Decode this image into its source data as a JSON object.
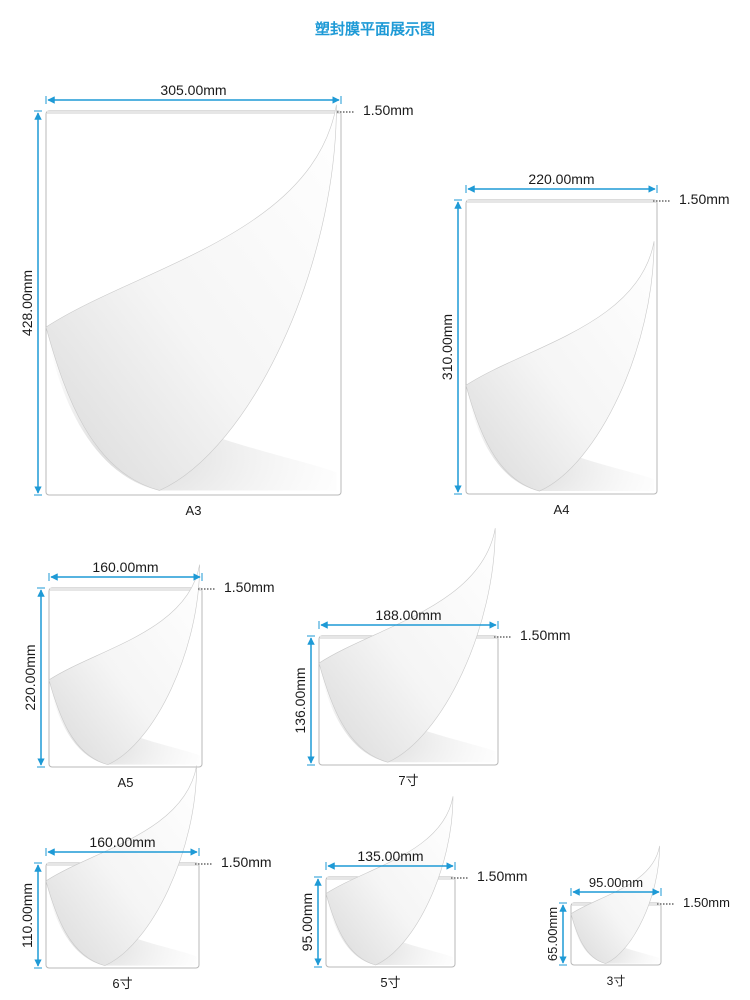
{
  "title": "塑封膜平面展示图",
  "colors": {
    "title": "#1e9ad6",
    "dimension": "#1e9ad6",
    "sheet_border": "#b8b8b8",
    "sheet_fill": "#ffffff",
    "text": "#1a1a1a"
  },
  "sheets": [
    {
      "name": "A3",
      "width": "305.00mm",
      "height": "428.00mm",
      "seal": "1.50mm"
    },
    {
      "name": "A4",
      "width": "220.00mm",
      "height": "310.00mm",
      "seal": "1.50mm"
    },
    {
      "name": "A5",
      "width": "160.00mm",
      "height": "220.00mm",
      "seal": "1.50mm"
    },
    {
      "name": "7寸",
      "width": "188.00mm",
      "height": "136.00mm",
      "seal": "1.50mm"
    },
    {
      "name": "6寸",
      "width": "160.00mm",
      "height": "110.00mm",
      "seal": "1.50mm"
    },
    {
      "name": "5寸",
      "width": "135.00mm",
      "height": "95.00mm",
      "seal": "1.50mm"
    },
    {
      "name": "3寸",
      "width": "95.00mm",
      "height": "65.00mm",
      "seal": "1.50mm"
    }
  ]
}
